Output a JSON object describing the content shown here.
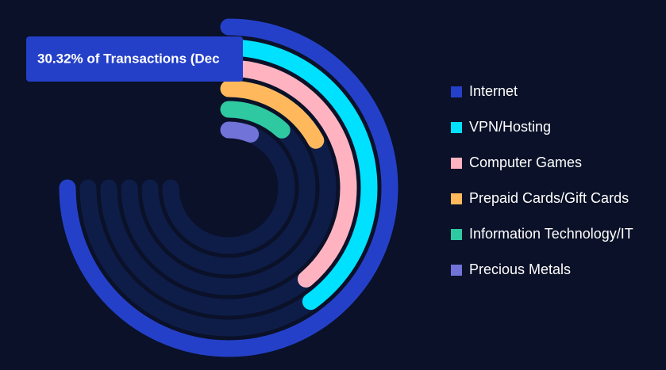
{
  "chart_data": {
    "type": "radialBar",
    "categories": [
      "Internet",
      "VPN/Hosting",
      "Computer Games",
      "Prepaid Cards/Gift Cards",
      "Information Technology/IT",
      "Precious Metals"
    ],
    "values": [
      30.32,
      16.2,
      15.7,
      6.9,
      4.8,
      2.5
    ],
    "colors": [
      "#2540c8",
      "#00e1ff",
      "#ffb3c1",
      "#ffb95c",
      "#2ec9a0",
      "#7173d9"
    ],
    "rlim": [
      0,
      30.32
    ],
    "track_color": "#0e1d48",
    "tooltip": "30.32% of Transactions (Dec"
  }
}
